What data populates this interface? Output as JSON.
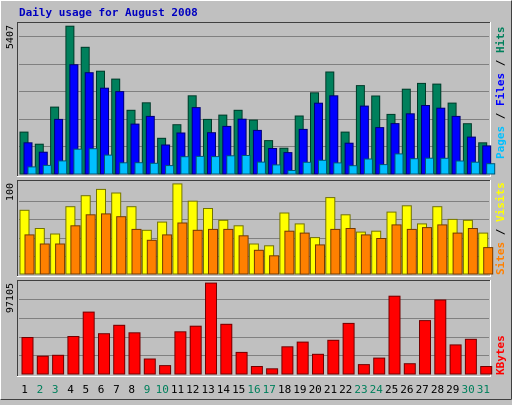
{
  "title": "Daily usage for August 2008",
  "colors": {
    "background": "#c0c0c0",
    "title": "#0000c0",
    "hits": "#00805c",
    "files": "#0000ff",
    "pages": "#00c0ff",
    "visits": "#ffff00",
    "sites": "#ff8000",
    "kbytes": "#ff0000",
    "weekday_tick": "#000000",
    "weekend_tick": "#00805c",
    "grid": "#808080"
  },
  "chart_data": [
    {
      "type": "bar",
      "name": "top-panel",
      "ymax_label": "5407",
      "ylim": [
        0,
        5407
      ],
      "legend": [
        "Pages",
        "Files",
        "Hits"
      ],
      "categories": [
        "1",
        "2",
        "3",
        "4",
        "5",
        "6",
        "7",
        "8",
        "9",
        "10",
        "11",
        "12",
        "13",
        "14",
        "15",
        "16",
        "17",
        "18",
        "19",
        "20",
        "21",
        "22",
        "23",
        "24",
        "25",
        "26",
        "27",
        "28",
        "29",
        "30",
        "31"
      ],
      "series": [
        {
          "name": "Hits",
          "values": [
            1522,
            1081,
            2428,
            5364,
            4597,
            3730,
            3444,
            2312,
            2584,
            1297,
            1789,
            2838,
            1983,
            2138,
            2312,
            1957,
            1211,
            938,
            2104,
            2946,
            3700,
            1522,
            3209,
            2830,
            2163,
            3077,
            3287,
            3261,
            2573,
            1826,
            1132
          ]
        },
        {
          "name": "Files",
          "values": [
            1132,
            790,
            1981,
            3966,
            3676,
            3112,
            2990,
            1812,
            2092,
            1052,
            1489,
            2411,
            1499,
            1728,
            1989,
            1581,
            924,
            775,
            1620,
            2568,
            2838,
            1118,
            2463,
            1683,
            1828,
            2184,
            2487,
            2389,
            2092,
            1338,
            1018
          ]
        },
        {
          "name": "Pages",
          "values": [
            256,
            311,
            475,
            901,
            918,
            686,
            407,
            411,
            389,
            305,
            626,
            638,
            633,
            659,
            670,
            432,
            330,
            128,
            425,
            497,
            401,
            303,
            545,
            341,
            728,
            555,
            573,
            568,
            471,
            430,
            374
          ]
        }
      ]
    },
    {
      "type": "bar",
      "name": "middle-panel",
      "ymax_label": "100",
      "ylim": [
        0,
        100
      ],
      "legend": [
        "Sites",
        "Visits"
      ],
      "categories": [
        "1",
        "2",
        "3",
        "4",
        "5",
        "6",
        "7",
        "8",
        "9",
        "10",
        "11",
        "12",
        "13",
        "14",
        "15",
        "16",
        "17",
        "18",
        "19",
        "20",
        "21",
        "22",
        "23",
        "24",
        "25",
        "26",
        "27",
        "28",
        "29",
        "30",
        "31"
      ],
      "series": [
        {
          "name": "Visits",
          "values": [
            70,
            50,
            44,
            74,
            86,
            93,
            89,
            74,
            48,
            57,
            99,
            80,
            72,
            59,
            53,
            33,
            31,
            67,
            55,
            40,
            84,
            65,
            46,
            47,
            68,
            75,
            55,
            74,
            60,
            59,
            45
          ]
        },
        {
          "name": "Sites",
          "values": [
            43,
            33,
            33,
            53,
            65,
            66,
            63,
            49,
            37,
            43,
            56,
            48,
            49,
            49,
            42,
            26,
            20,
            47,
            45,
            32,
            49,
            50,
            43,
            39,
            54,
            49,
            51,
            54,
            45,
            50,
            29
          ]
        }
      ]
    },
    {
      "type": "bar",
      "name": "bottom-panel",
      "ymax_label": "97105",
      "ylim": [
        0,
        97105
      ],
      "legend": [
        "KBytes"
      ],
      "categories": [
        "1",
        "2",
        "3",
        "4",
        "5",
        "6",
        "7",
        "8",
        "9",
        "10",
        "11",
        "12",
        "13",
        "14",
        "15",
        "16",
        "17",
        "18",
        "19",
        "20",
        "21",
        "22",
        "23",
        "24",
        "25",
        "26",
        "27",
        "28",
        "29",
        "30",
        "31"
      ],
      "series": [
        {
          "name": "KBytes",
          "values": [
            39000,
            19000,
            20000,
            40000,
            66000,
            43000,
            52000,
            44000,
            16000,
            9000,
            45000,
            51000,
            97000,
            53000,
            23000,
            8000,
            5500,
            29000,
            34000,
            21000,
            36000,
            54000,
            10000,
            17000,
            83000,
            11000,
            57000,
            79000,
            31000,
            37000,
            8000
          ]
        }
      ]
    }
  ]
}
